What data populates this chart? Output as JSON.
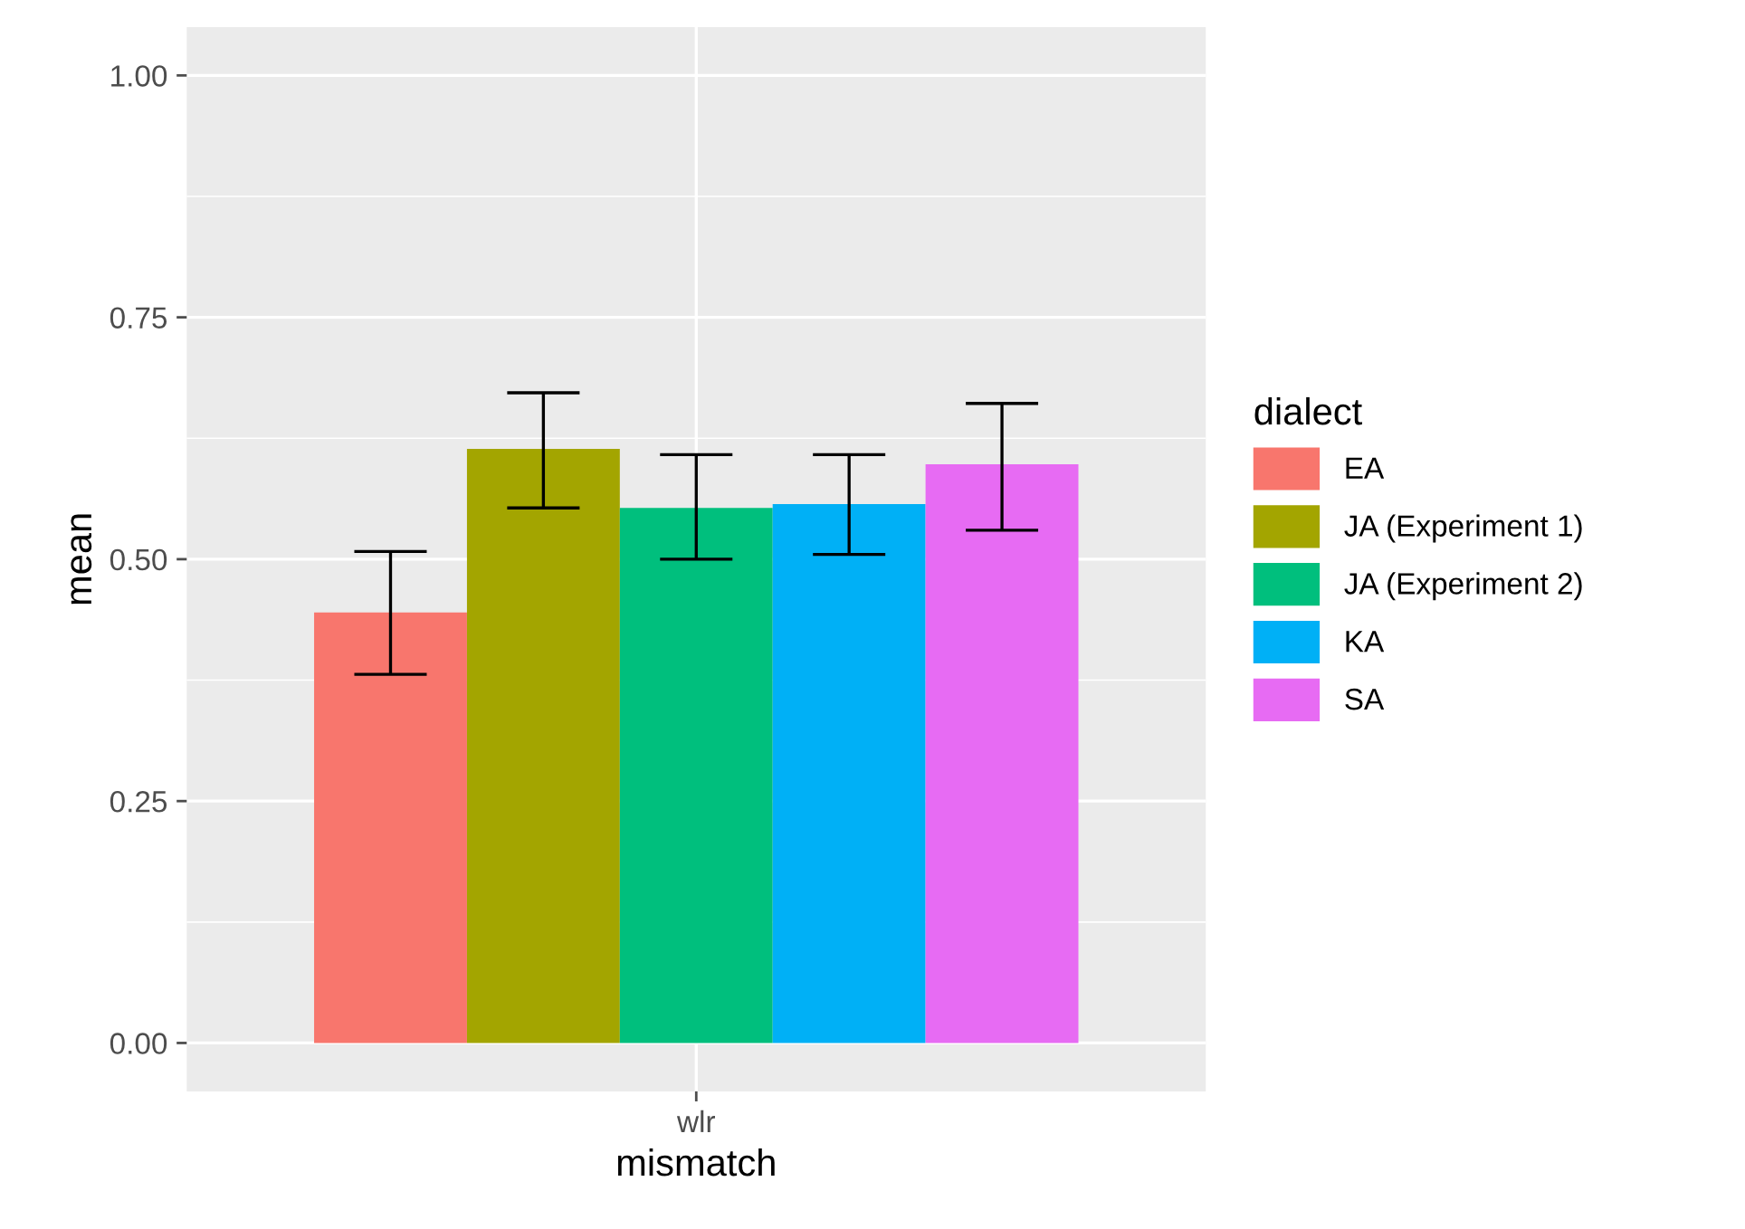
{
  "chart_data": {
    "type": "bar",
    "xlabel": "mismatch",
    "ylabel": "mean",
    "legend_title": "dialect",
    "categories": [
      "wlr"
    ],
    "series": [
      {
        "name": "EA",
        "color": "#f8766d",
        "values": [
          0.445
        ],
        "errors": [
          [
            0.381,
            0.508
          ]
        ]
      },
      {
        "name": "JA (Experiment 1)",
        "color": "#a3a500",
        "values": [
          0.614
        ],
        "errors": [
          [
            0.553,
            0.672
          ]
        ]
      },
      {
        "name": "JA (Experiment 2)",
        "color": "#00bf7d",
        "values": [
          0.553
        ],
        "errors": [
          [
            0.5,
            0.608
          ]
        ]
      },
      {
        "name": "KA",
        "color": "#00b0f6",
        "values": [
          0.557
        ],
        "errors": [
          [
            0.505,
            0.608
          ]
        ]
      },
      {
        "name": "SA",
        "color": "#e76bf3",
        "values": [
          0.598
        ],
        "errors": [
          [
            0.53,
            0.661
          ]
        ]
      }
    ],
    "ylim": [
      -0.05,
      1.05
    ],
    "yticks": [
      {
        "value": 0,
        "label": "0.00"
      },
      {
        "value": 0.25,
        "label": "0.25"
      },
      {
        "value": 0.5,
        "label": "0.50"
      },
      {
        "value": 0.75,
        "label": "0.75"
      },
      {
        "value": 1,
        "label": "1.00"
      }
    ],
    "grid": true,
    "legend": "right"
  }
}
